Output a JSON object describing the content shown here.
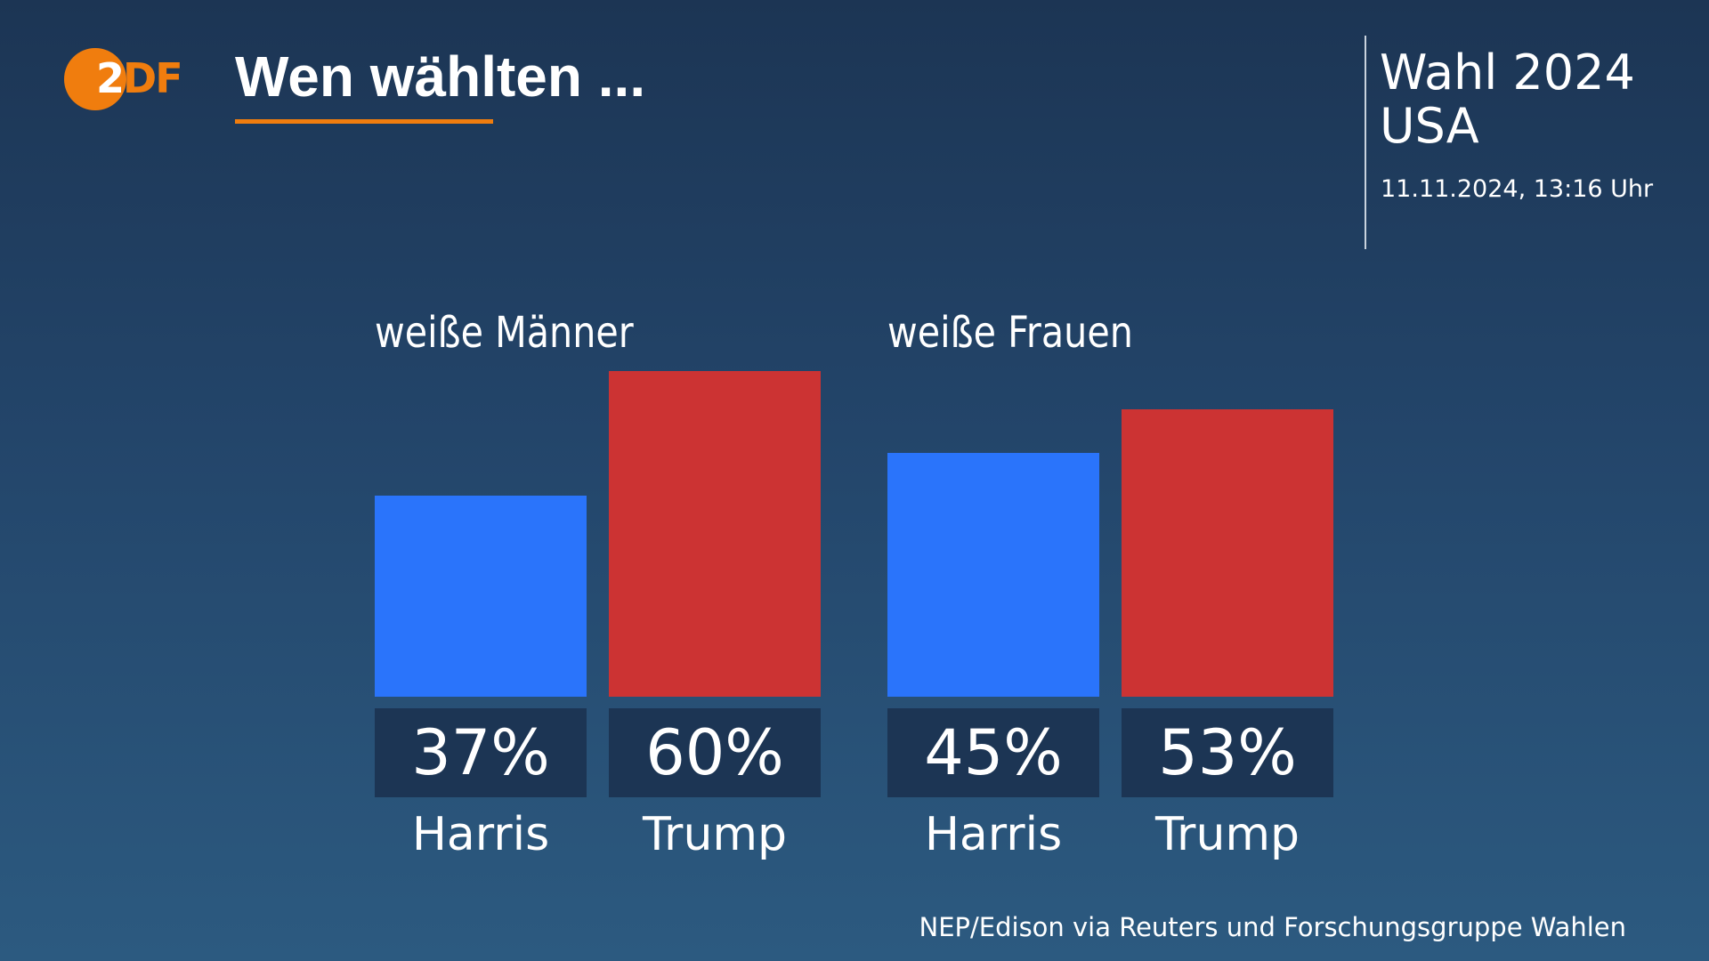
{
  "logo": {
    "text_first": "2",
    "text_rest": "DF",
    "circle_color": "#f07d0e"
  },
  "header": {
    "title": "Wen wählten ...",
    "accent_color": "#f07d0e"
  },
  "election": {
    "line1": "Wahl 2024",
    "line2": "USA",
    "timestamp": "11.11.2024, 13:16 Uhr"
  },
  "chart_data": {
    "type": "bar",
    "unit": "%",
    "ylim": [
      0,
      60
    ],
    "grid": false,
    "groups": [
      {
        "label": "weiße Männer",
        "bars": [
          {
            "candidate": "Harris",
            "value": 37,
            "display": "37%",
            "color": "#2a74fb"
          },
          {
            "candidate": "Trump",
            "value": 60,
            "display": "60%",
            "color": "#cc3333"
          }
        ]
      },
      {
        "label": "weiße Frauen",
        "bars": [
          {
            "candidate": "Harris",
            "value": 45,
            "display": "45%",
            "color": "#2a74fb"
          },
          {
            "candidate": "Trump",
            "value": 53,
            "display": "53%",
            "color": "#cc3333"
          }
        ]
      }
    ]
  },
  "source": "NEP/Edison via Reuters und Forschungsgruppe Wahlen"
}
